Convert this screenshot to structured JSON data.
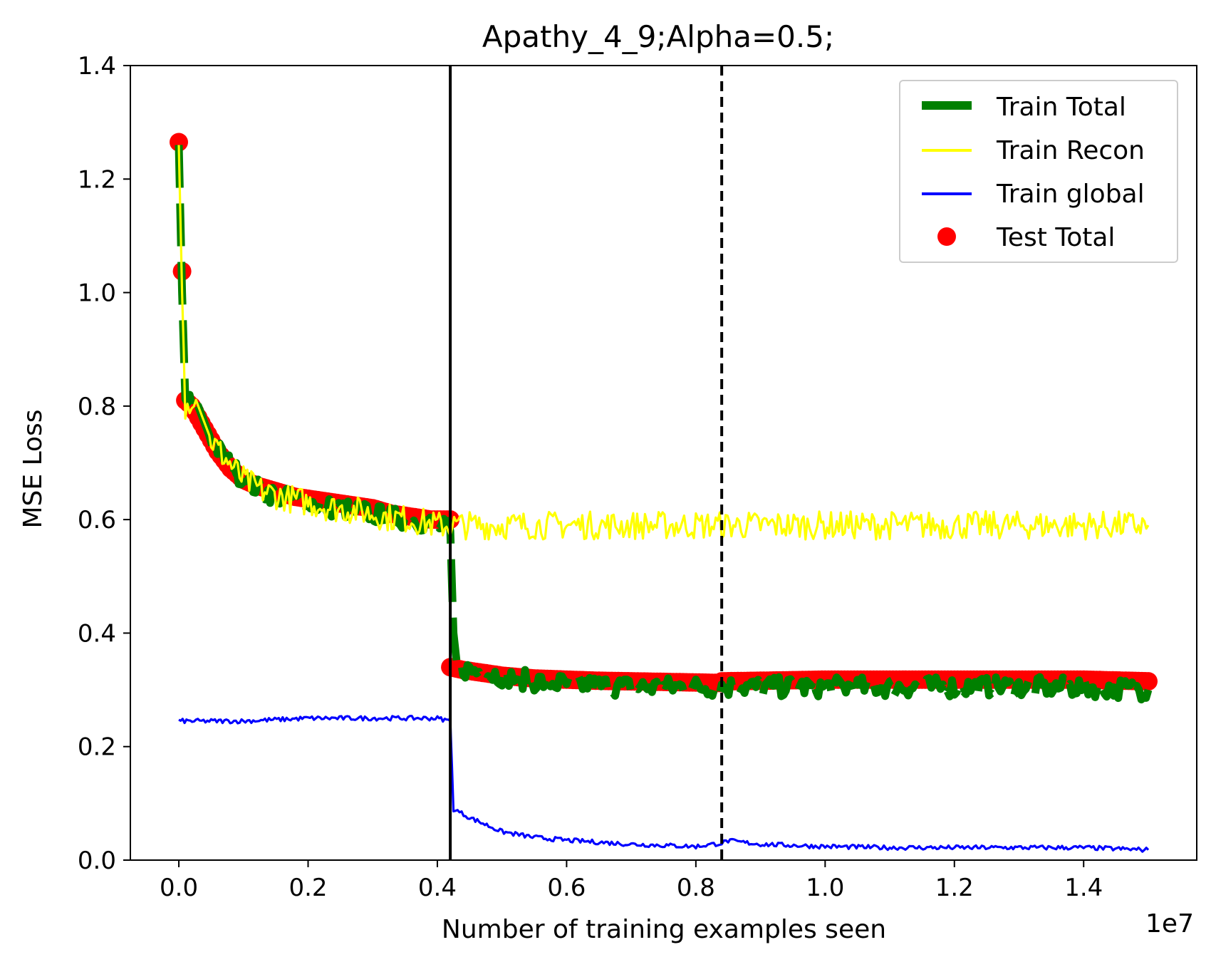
{
  "chart_data": {
    "type": "line",
    "title": "Apathy_4_9;Alpha=0.5;",
    "xlabel": "Number of training examples seen",
    "ylabel": "MSE Loss",
    "x_offset_label": "1e7",
    "xlim": [
      -0.075,
      1.575
    ],
    "ylim": [
      0.0,
      1.4
    ],
    "x_ticks": [
      "0.0",
      "0.2",
      "0.4",
      "0.6",
      "0.8",
      "1.0",
      "1.2",
      "1.4"
    ],
    "y_ticks": [
      "0.0",
      "0.2",
      "0.4",
      "0.6",
      "0.8",
      "1.0",
      "1.2",
      "1.4"
    ],
    "vlines": [
      {
        "x": 0.42,
        "style": "solid"
      },
      {
        "x": 0.84,
        "style": "dashed"
      }
    ],
    "legend_position": "upper right",
    "series": [
      {
        "name": "Train Total",
        "color": "#008000",
        "style": "dashed-thick",
        "x": [
          0.0,
          0.005,
          0.01,
          0.02,
          0.03,
          0.05,
          0.07,
          0.1,
          0.13,
          0.16,
          0.2,
          0.24,
          0.28,
          0.32,
          0.36,
          0.4,
          0.42,
          0.425,
          0.43,
          0.45,
          0.5,
          0.55,
          0.6,
          0.7,
          0.8,
          0.84,
          0.9,
          1.0,
          1.1,
          1.2,
          1.3,
          1.4,
          1.5
        ],
        "y": [
          1.26,
          1.0,
          0.8,
          0.81,
          0.8,
          0.74,
          0.71,
          0.67,
          0.65,
          0.64,
          0.63,
          0.62,
          0.615,
          0.605,
          0.6,
          0.59,
          0.58,
          0.4,
          0.34,
          0.335,
          0.325,
          0.315,
          0.31,
          0.305,
          0.305,
          0.305,
          0.305,
          0.305,
          0.305,
          0.305,
          0.305,
          0.305,
          0.3
        ]
      },
      {
        "name": "Train Recon",
        "color": "#ffff00",
        "style": "solid",
        "x": [
          0.0,
          0.005,
          0.01,
          0.02,
          0.03,
          0.05,
          0.07,
          0.1,
          0.13,
          0.16,
          0.2,
          0.24,
          0.28,
          0.32,
          0.36,
          0.4,
          0.42,
          0.45,
          0.5,
          0.6,
          0.7,
          0.8,
          0.84,
          0.9,
          1.0,
          1.1,
          1.2,
          1.3,
          1.4,
          1.5
        ],
        "y": [
          1.26,
          1.0,
          0.8,
          0.81,
          0.8,
          0.74,
          0.71,
          0.67,
          0.65,
          0.64,
          0.63,
          0.62,
          0.615,
          0.605,
          0.6,
          0.59,
          0.59,
          0.59,
          0.59,
          0.59,
          0.59,
          0.59,
          0.59,
          0.59,
          0.59,
          0.59,
          0.59,
          0.59,
          0.59,
          0.59
        ]
      },
      {
        "name": "Train global",
        "color": "#0000ff",
        "style": "solid",
        "x": [
          0.0,
          0.05,
          0.1,
          0.2,
          0.3,
          0.4,
          0.42,
          0.425,
          0.45,
          0.5,
          0.55,
          0.6,
          0.7,
          0.8,
          0.84,
          0.85,
          0.9,
          1.0,
          1.1,
          1.2,
          1.3,
          1.4,
          1.5
        ],
        "y": [
          0.245,
          0.245,
          0.245,
          0.25,
          0.25,
          0.25,
          0.245,
          0.09,
          0.075,
          0.05,
          0.04,
          0.035,
          0.028,
          0.024,
          0.03,
          0.034,
          0.028,
          0.024,
          0.022,
          0.022,
          0.022,
          0.022,
          0.018
        ]
      },
      {
        "name": "Test Total",
        "color": "#ff0000",
        "style": "markers",
        "x": [
          0.0,
          0.01,
          0.02,
          0.04,
          0.06,
          0.08,
          0.1,
          0.12,
          0.15,
          0.18,
          0.21,
          0.24,
          0.27,
          0.3,
          0.33,
          0.36,
          0.39,
          0.42,
          0.42,
          0.44,
          0.47,
          0.5,
          0.55,
          0.6,
          0.65,
          0.7,
          0.75,
          0.8,
          0.84,
          0.84,
          0.9,
          1.0,
          1.1,
          1.2,
          1.3,
          1.4,
          1.5
        ],
        "y": [
          1.265,
          0.81,
          0.8,
          0.76,
          0.72,
          0.69,
          0.67,
          0.66,
          0.65,
          0.64,
          0.635,
          0.63,
          0.625,
          0.62,
          0.61,
          0.605,
          0.6,
          0.6,
          0.34,
          0.335,
          0.33,
          0.325,
          0.32,
          0.318,
          0.316,
          0.315,
          0.314,
          0.313,
          0.312,
          0.315,
          0.316,
          0.318,
          0.318,
          0.318,
          0.318,
          0.318,
          0.315
        ]
      }
    ]
  }
}
